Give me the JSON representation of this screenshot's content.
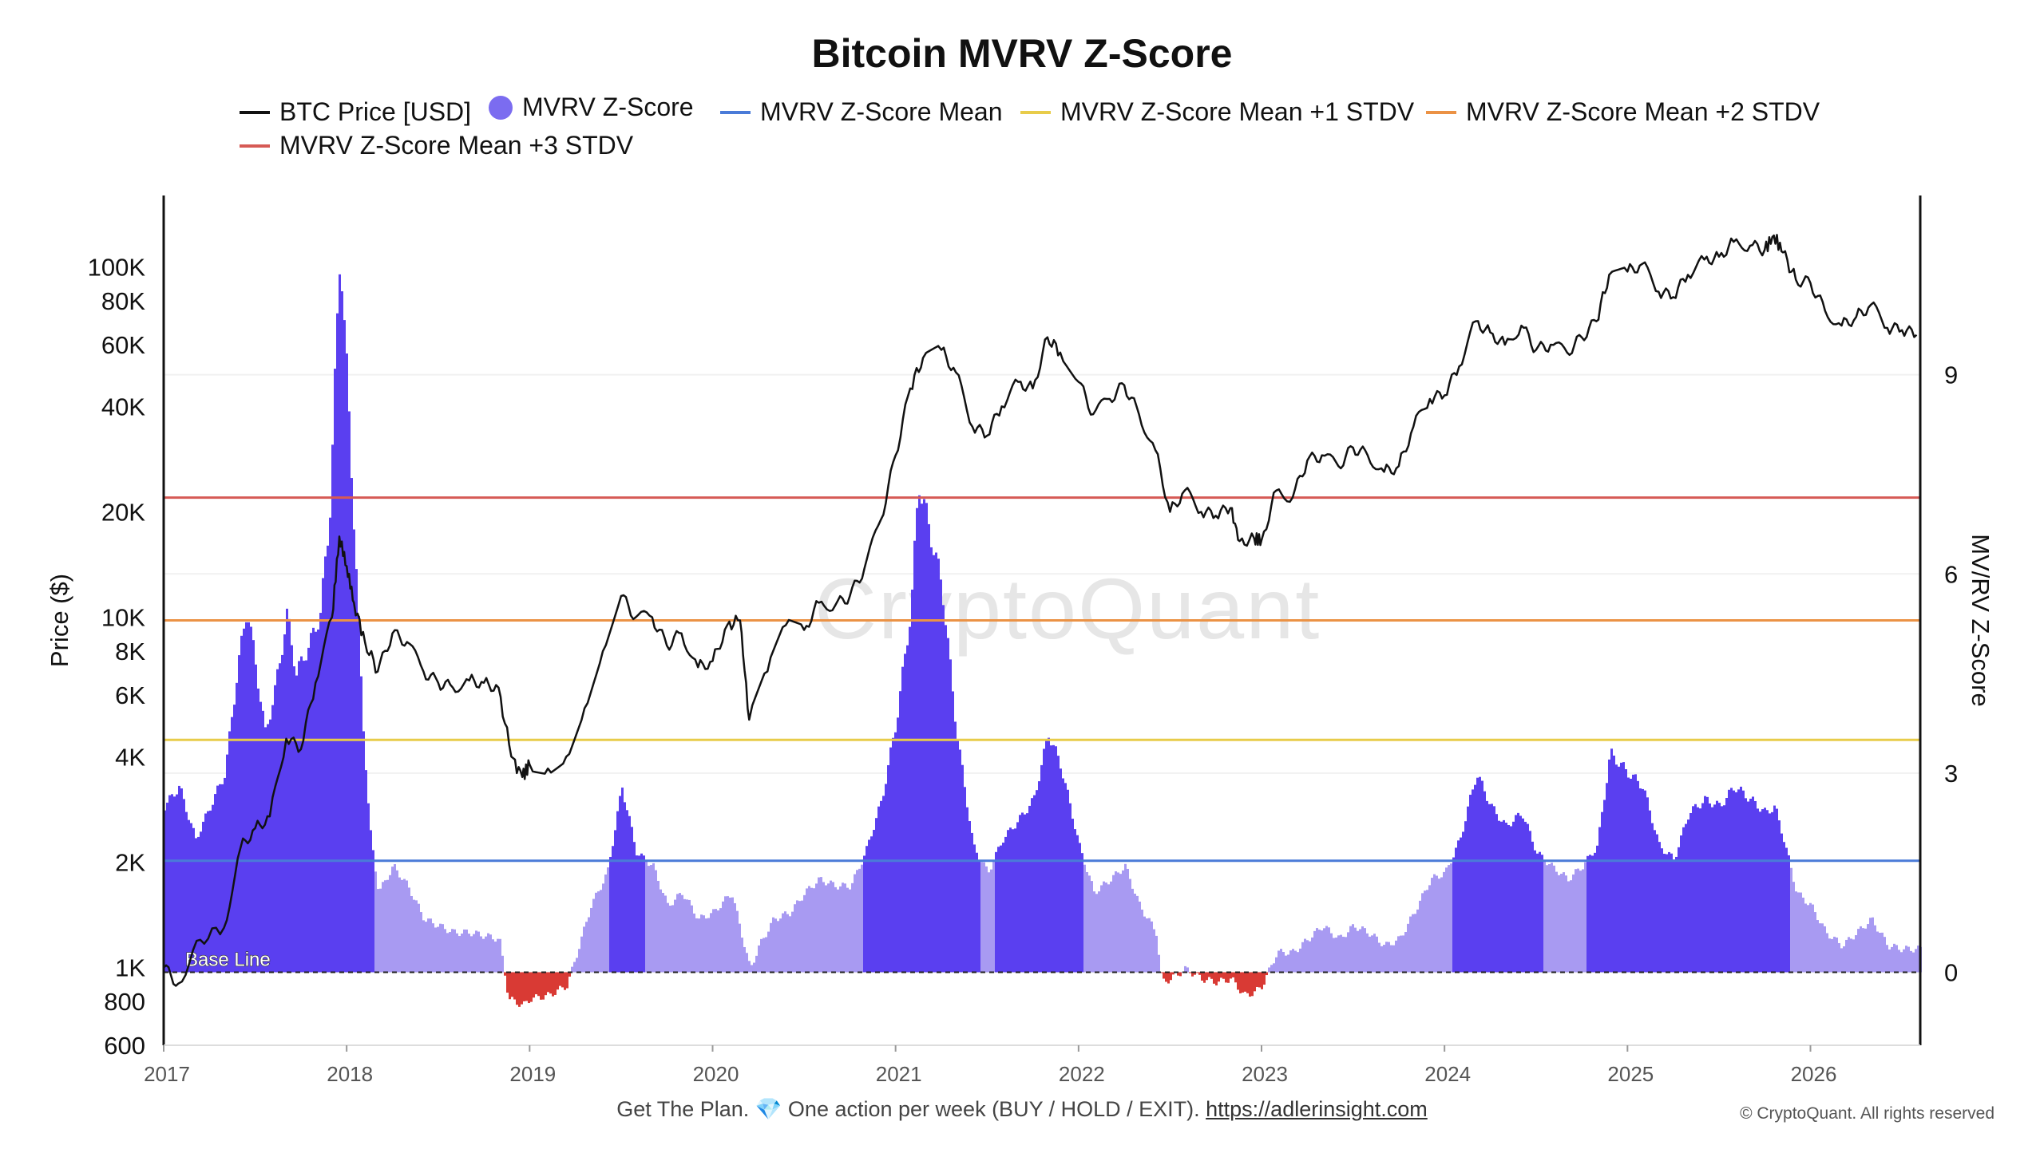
{
  "title": "Bitcoin MVRV Z-Score",
  "legend": [
    {
      "label": "BTC Price [USD]",
      "color": "#111111",
      "kind": "line"
    },
    {
      "label": "MVRV Z-Score",
      "color": "#7b6cf0",
      "kind": "dot"
    },
    {
      "label": "MVRV Z-Score Mean",
      "color": "#4a7bd8",
      "kind": "line"
    },
    {
      "label": "MVRV Z-Score Mean +1 STDV",
      "color": "#e8cc4a",
      "kind": "line"
    },
    {
      "label": "MVRV Z-Score Mean +2 STDV",
      "color": "#eb9245",
      "kind": "line"
    },
    {
      "label": "MVRV Z-Score Mean +3 STDV",
      "color": "#d65a55",
      "kind": "line"
    }
  ],
  "watermark": "CryptoQuant",
  "footer": {
    "text": "Get The Plan. 💎 One action per week (BUY / HOLD / EXIT).",
    "link": "https://adlerinsight.com"
  },
  "copyright": "© CryptoQuant. All rights reserved",
  "chart_data": {
    "type": "line",
    "x_ticks": [
      "2017",
      "2018",
      "2019",
      "2020",
      "2021",
      "2022",
      "2023",
      "2024",
      "2025",
      "2026"
    ],
    "xlim": [
      2017.0,
      2026.6
    ],
    "y_left": {
      "label": "Price ($)",
      "scale": "log",
      "ticks": [
        "600",
        "800",
        "1K",
        "2K",
        "4K",
        "6K",
        "8K",
        "10K",
        "20K",
        "40K",
        "60K",
        "80K",
        "100K"
      ],
      "tick_values": [
        600,
        800,
        1000,
        2000,
        4000,
        6000,
        8000,
        10000,
        20000,
        40000,
        60000,
        80000,
        100000
      ],
      "range": [
        600,
        160000
      ]
    },
    "y_right": {
      "label": "MV/RV Z-Score",
      "ticks": [
        "0",
        "3",
        "6",
        "9"
      ],
      "tick_values": [
        0,
        3,
        6,
        9
      ],
      "range": [
        -1.1,
        11.7
      ]
    },
    "reference_lines": {
      "mean": 1.68,
      "mean_plus_1_stdv": 3.5,
      "mean_plus_2_stdv": 5.3,
      "mean_plus_3_stdv": 7.15,
      "base_line": 0,
      "base_line_label": "Base Line"
    },
    "series": [
      {
        "name": "BTC Price [USD]",
        "color": "#111111",
        "points": [
          [
            2017.0,
            1000
          ],
          [
            2017.08,
            900
          ],
          [
            2017.2,
            1200
          ],
          [
            2017.33,
            1300
          ],
          [
            2017.42,
            2200
          ],
          [
            2017.5,
            2500
          ],
          [
            2017.58,
            2700
          ],
          [
            2017.67,
            4500
          ],
          [
            2017.75,
            4200
          ],
          [
            2017.83,
            6500
          ],
          [
            2017.92,
            10000
          ],
          [
            2017.96,
            17000
          ],
          [
            2018.0,
            14000
          ],
          [
            2018.04,
            11000
          ],
          [
            2018.1,
            8500
          ],
          [
            2018.17,
            7000
          ],
          [
            2018.25,
            9000
          ],
          [
            2018.33,
            8500
          ],
          [
            2018.42,
            7000
          ],
          [
            2018.5,
            6500
          ],
          [
            2018.58,
            6300
          ],
          [
            2018.67,
            6600
          ],
          [
            2018.75,
            6500
          ],
          [
            2018.83,
            6300
          ],
          [
            2018.9,
            4000
          ],
          [
            2018.96,
            3500
          ],
          [
            2019.0,
            3800
          ],
          [
            2019.1,
            3700
          ],
          [
            2019.2,
            4000
          ],
          [
            2019.3,
            5500
          ],
          [
            2019.4,
            8000
          ],
          [
            2019.5,
            11500
          ],
          [
            2019.58,
            10000
          ],
          [
            2019.67,
            10000
          ],
          [
            2019.75,
            8300
          ],
          [
            2019.83,
            9000
          ],
          [
            2019.92,
            7200
          ],
          [
            2020.0,
            7500
          ],
          [
            2020.08,
            9500
          ],
          [
            2020.15,
            9800
          ],
          [
            2020.2,
            5100
          ],
          [
            2020.3,
            7000
          ],
          [
            2020.4,
            9500
          ],
          [
            2020.5,
            9200
          ],
          [
            2020.58,
            11000
          ],
          [
            2020.67,
            10800
          ],
          [
            2020.75,
            11500
          ],
          [
            2020.83,
            13800
          ],
          [
            2020.92,
            19000
          ],
          [
            2021.0,
            29000
          ],
          [
            2021.08,
            45000
          ],
          [
            2021.15,
            55000
          ],
          [
            2021.25,
            58000
          ],
          [
            2021.33,
            50000
          ],
          [
            2021.42,
            35000
          ],
          [
            2021.5,
            33000
          ],
          [
            2021.58,
            40000
          ],
          [
            2021.67,
            47000
          ],
          [
            2021.75,
            45000
          ],
          [
            2021.83,
            63000
          ],
          [
            2021.9,
            57000
          ],
          [
            2022.0,
            47000
          ],
          [
            2022.08,
            38000
          ],
          [
            2022.17,
            42000
          ],
          [
            2022.25,
            46000
          ],
          [
            2022.33,
            38000
          ],
          [
            2022.42,
            30000
          ],
          [
            2022.5,
            20000
          ],
          [
            2022.58,
            23000
          ],
          [
            2022.67,
            20000
          ],
          [
            2022.75,
            19500
          ],
          [
            2022.83,
            20500
          ],
          [
            2022.88,
            16500
          ],
          [
            2022.96,
            16800
          ],
          [
            2023.0,
            16600
          ],
          [
            2023.08,
            23000
          ],
          [
            2023.17,
            22000
          ],
          [
            2023.25,
            28000
          ],
          [
            2023.33,
            29000
          ],
          [
            2023.42,
            27000
          ],
          [
            2023.5,
            30500
          ],
          [
            2023.58,
            29000
          ],
          [
            2023.67,
            26000
          ],
          [
            2023.75,
            27000
          ],
          [
            2023.83,
            35000
          ],
          [
            2023.92,
            42000
          ],
          [
            2024.0,
            43000
          ],
          [
            2024.08,
            52000
          ],
          [
            2024.17,
            70000
          ],
          [
            2024.25,
            65000
          ],
          [
            2024.33,
            60000
          ],
          [
            2024.42,
            68000
          ],
          [
            2024.5,
            58000
          ],
          [
            2024.58,
            60000
          ],
          [
            2024.67,
            57000
          ],
          [
            2024.75,
            63000
          ],
          [
            2024.83,
            70000
          ],
          [
            2024.9,
            95000
          ],
          [
            2025.0,
            97000
          ],
          [
            2025.08,
            102000
          ],
          [
            2025.17,
            85000
          ],
          [
            2025.25,
            82000
          ],
          [
            2025.33,
            95000
          ],
          [
            2025.42,
            105000
          ],
          [
            2025.5,
            107000
          ],
          [
            2025.58,
            118000
          ],
          [
            2025.67,
            115000
          ],
          [
            2025.75,
            112000
          ],
          [
            2025.8,
            123000
          ],
          [
            2025.85,
            110000
          ],
          [
            2025.92,
            92000
          ],
          [
            2026.0,
            90000
          ],
          [
            2026.08,
            75000
          ],
          [
            2026.17,
            68000
          ],
          [
            2026.25,
            72000
          ],
          [
            2026.33,
            78000
          ],
          [
            2026.42,
            67000
          ],
          [
            2026.5,
            66000
          ],
          [
            2026.58,
            64000
          ]
        ]
      },
      {
        "name": "MVRV Z-Score",
        "color": "#7b6cf0",
        "points": [
          [
            2017.0,
            2.5
          ],
          [
            2017.08,
            2.8
          ],
          [
            2017.17,
            2.0
          ],
          [
            2017.25,
            2.5
          ],
          [
            2017.33,
            3.0
          ],
          [
            2017.4,
            4.6
          ],
          [
            2017.45,
            5.5
          ],
          [
            2017.5,
            4.6
          ],
          [
            2017.55,
            3.6
          ],
          [
            2017.6,
            4.2
          ],
          [
            2017.67,
            5.4
          ],
          [
            2017.72,
            4.5
          ],
          [
            2017.8,
            5.0
          ],
          [
            2017.85,
            5.4
          ],
          [
            2017.9,
            6.8
          ],
          [
            2017.96,
            11.0
          ],
          [
            2018.0,
            8.8
          ],
          [
            2018.04,
            6.5
          ],
          [
            2018.08,
            4.0
          ],
          [
            2018.12,
            2.2
          ],
          [
            2018.17,
            1.2
          ],
          [
            2018.25,
            1.6
          ],
          [
            2018.33,
            1.3
          ],
          [
            2018.42,
            0.8
          ],
          [
            2018.5,
            0.7
          ],
          [
            2018.58,
            0.6
          ],
          [
            2018.67,
            0.6
          ],
          [
            2018.75,
            0.55
          ],
          [
            2018.83,
            0.5
          ],
          [
            2018.88,
            -0.4
          ],
          [
            2018.96,
            -0.5
          ],
          [
            2019.0,
            -0.4
          ],
          [
            2019.1,
            -0.35
          ],
          [
            2019.2,
            -0.2
          ],
          [
            2019.25,
            0.25
          ],
          [
            2019.33,
            1.0
          ],
          [
            2019.42,
            1.5
          ],
          [
            2019.5,
            2.8
          ],
          [
            2019.58,
            1.8
          ],
          [
            2019.67,
            1.6
          ],
          [
            2019.75,
            1.0
          ],
          [
            2019.83,
            1.2
          ],
          [
            2019.92,
            0.8
          ],
          [
            2020.0,
            0.9
          ],
          [
            2020.1,
            1.2
          ],
          [
            2020.2,
            0.05
          ],
          [
            2020.25,
            0.4
          ],
          [
            2020.33,
            0.8
          ],
          [
            2020.42,
            0.9
          ],
          [
            2020.5,
            1.2
          ],
          [
            2020.58,
            1.4
          ],
          [
            2020.67,
            1.3
          ],
          [
            2020.75,
            1.3
          ],
          [
            2020.83,
            1.8
          ],
          [
            2020.92,
            2.6
          ],
          [
            2021.0,
            3.8
          ],
          [
            2021.08,
            5.5
          ],
          [
            2021.12,
            7.4
          ],
          [
            2021.17,
            6.8
          ],
          [
            2021.25,
            5.8
          ],
          [
            2021.33,
            3.6
          ],
          [
            2021.42,
            1.9
          ],
          [
            2021.5,
            1.5
          ],
          [
            2021.58,
            2.0
          ],
          [
            2021.67,
            2.3
          ],
          [
            2021.75,
            2.6
          ],
          [
            2021.83,
            3.6
          ],
          [
            2021.9,
            3.1
          ],
          [
            2022.0,
            1.9
          ],
          [
            2022.08,
            1.2
          ],
          [
            2022.17,
            1.4
          ],
          [
            2022.25,
            1.6
          ],
          [
            2022.33,
            1.0
          ],
          [
            2022.42,
            0.6
          ],
          [
            2022.45,
            -0.15
          ],
          [
            2022.5,
            -0.1
          ],
          [
            2022.58,
            0.05
          ],
          [
            2022.67,
            -0.1
          ],
          [
            2022.75,
            -0.15
          ],
          [
            2022.83,
            -0.1
          ],
          [
            2022.9,
            -0.35
          ],
          [
            2022.96,
            -0.3
          ],
          [
            2023.0,
            -0.2
          ],
          [
            2023.08,
            0.3
          ],
          [
            2023.17,
            0.3
          ],
          [
            2023.25,
            0.5
          ],
          [
            2023.33,
            0.7
          ],
          [
            2023.42,
            0.5
          ],
          [
            2023.5,
            0.7
          ],
          [
            2023.58,
            0.6
          ],
          [
            2023.67,
            0.4
          ],
          [
            2023.75,
            0.5
          ],
          [
            2023.83,
            0.9
          ],
          [
            2023.92,
            1.4
          ],
          [
            2024.0,
            1.5
          ],
          [
            2024.08,
            2.0
          ],
          [
            2024.17,
            3.0
          ],
          [
            2024.25,
            2.5
          ],
          [
            2024.33,
            2.2
          ],
          [
            2024.42,
            2.4
          ],
          [
            2024.5,
            1.8
          ],
          [
            2024.58,
            1.6
          ],
          [
            2024.67,
            1.4
          ],
          [
            2024.75,
            1.6
          ],
          [
            2024.83,
            1.9
          ],
          [
            2024.9,
            3.3
          ],
          [
            2025.0,
            3.0
          ],
          [
            2025.08,
            2.8
          ],
          [
            2025.17,
            1.9
          ],
          [
            2025.25,
            1.7
          ],
          [
            2025.33,
            2.4
          ],
          [
            2025.42,
            2.6
          ],
          [
            2025.5,
            2.5
          ],
          [
            2025.58,
            2.8
          ],
          [
            2025.67,
            2.6
          ],
          [
            2025.75,
            2.4
          ],
          [
            2025.8,
            2.5
          ],
          [
            2025.85,
            2.0
          ],
          [
            2025.92,
            1.2
          ],
          [
            2026.0,
            1.0
          ],
          [
            2026.08,
            0.6
          ],
          [
            2026.17,
            0.4
          ],
          [
            2026.25,
            0.6
          ],
          [
            2026.33,
            0.8
          ],
          [
            2026.42,
            0.4
          ],
          [
            2026.5,
            0.35
          ],
          [
            2026.58,
            0.35
          ]
        ]
      }
    ]
  }
}
